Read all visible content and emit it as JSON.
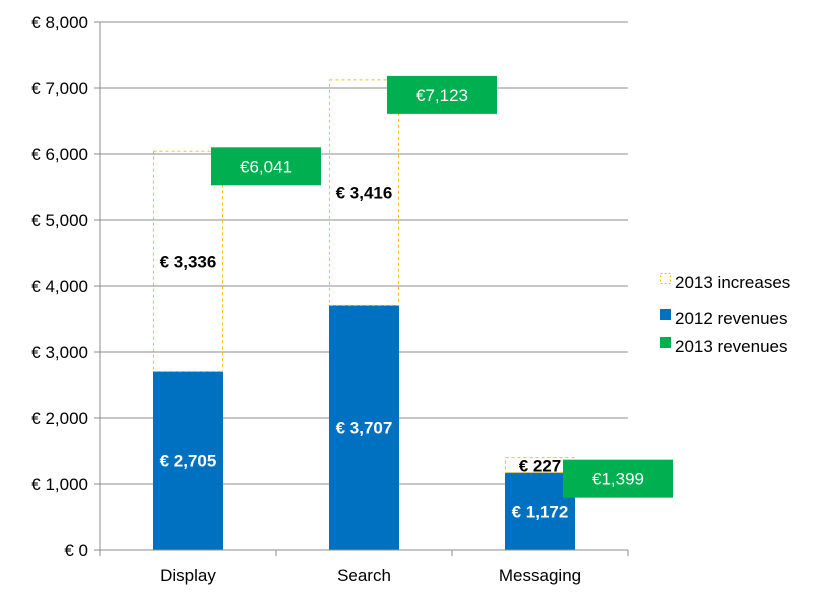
{
  "chart_data": {
    "type": "bar",
    "stacked": true,
    "categories": [
      "Display",
      "Search",
      "Messaging"
    ],
    "series": [
      {
        "name": "2012 revenues",
        "values": [
          2705,
          3707,
          1172
        ],
        "labels": [
          "€ 2,705",
          "€ 3,707",
          "€ 1,172"
        ],
        "color": "#0070C0",
        "style": "solid"
      },
      {
        "name": "2013 increases",
        "values": [
          3336,
          3416,
          227
        ],
        "labels": [
          "€ 3,336",
          "€ 3,416",
          "€ 227"
        ],
        "color": "#FFC000",
        "style": "dashed-outline"
      }
    ],
    "totals": {
      "name": "2013 revenues",
      "values": [
        6041,
        7123,
        1399
      ],
      "labels": [
        "€6,041",
        "€7,123",
        "€1,399"
      ],
      "color": "#00B050"
    },
    "ylim": [
      0,
      8000
    ],
    "yticks": [
      0,
      1000,
      2000,
      3000,
      4000,
      5000,
      6000,
      7000,
      8000
    ],
    "ytick_labels": [
      "€ 0",
      "€ 1,000",
      "€ 2,000",
      "€ 3,000",
      "€ 4,000",
      "€ 5,000",
      "€ 6,000",
      "€ 7,000",
      "€ 8,000"
    ],
    "grid": true,
    "legend_position": "right",
    "legend": [
      "2013 increases",
      "2012 revenues",
      "2013 revenues"
    ]
  }
}
